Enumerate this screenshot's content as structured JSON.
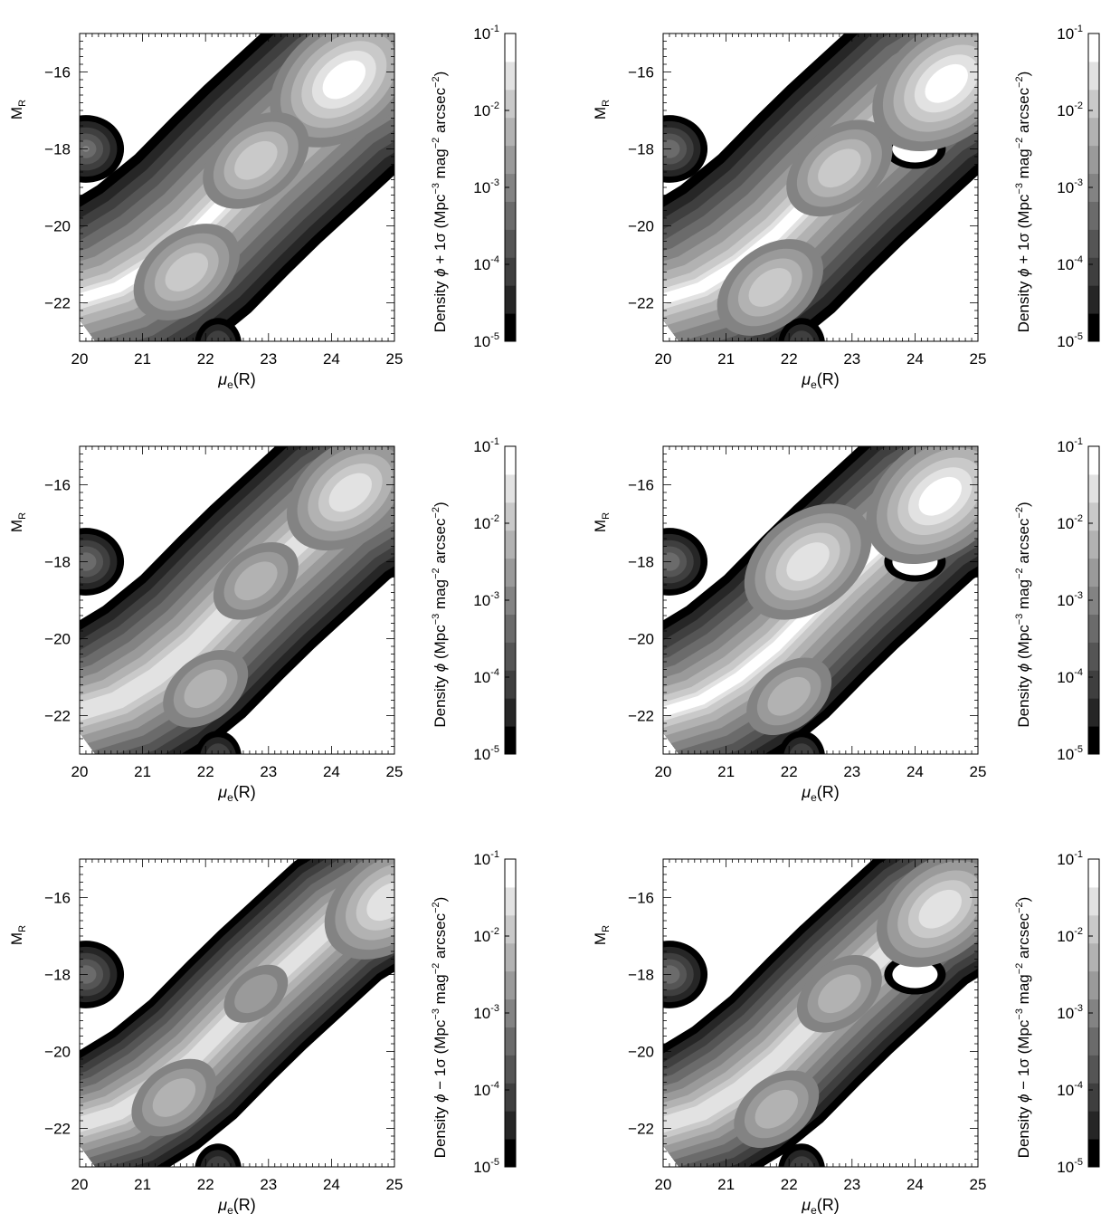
{
  "figure": {
    "colorbar_ticks": [
      {
        "base": "10",
        "exp": "-1",
        "value": 0.1
      },
      {
        "base": "10",
        "exp": "-2",
        "value": 0.01
      },
      {
        "base": "10",
        "exp": "-3",
        "value": 0.001
      },
      {
        "base": "10",
        "exp": "-4",
        "value": 0.0001
      },
      {
        "base": "10",
        "exp": "-5",
        "value": 1e-05
      }
    ],
    "colorbar_levels_gray": [
      "#000000",
      "#262626",
      "#3f3f3f",
      "#555555",
      "#6b6b6b",
      "#838383",
      "#9a9a9a",
      "#b2b2b2",
      "#c9c9c9",
      "#e2e2e2",
      "#ffffff"
    ],
    "y_axis_label": {
      "main": "M",
      "sub": "R"
    },
    "x_axis_label": {
      "main": "μ",
      "sub": "e",
      "tail": "(R)"
    }
  },
  "chart_data": [
    {
      "type": "heatmap",
      "panel": "top-left",
      "stat": "+",
      "colorbar_label": {
        "pre": "Density ",
        "phi": "ϕ",
        "mod": " + 1σ",
        "u1": " (Mpc",
        "e1": "−3",
        "u2": " mag",
        "e2": "−2",
        "u3": " arcsec",
        "e3": "−2",
        "u4": ")"
      },
      "x_ticks": [
        "20",
        "21",
        "22",
        "23",
        "24",
        "25"
      ],
      "y_ticks": [
        "−16",
        "−18",
        "−20",
        "−22"
      ],
      "xlim": [
        20,
        25
      ],
      "ylim": [
        -23,
        -15
      ],
      "colorbar_scale": "log",
      "colorbar_range": [
        1e-05,
        0.1
      ],
      "peaks": [
        {
          "x": 24.2,
          "y": -16.2,
          "level": 10
        },
        {
          "x": 22.8,
          "y": -18.3,
          "level": 8
        },
        {
          "x": 21.7,
          "y": -21.2,
          "level": 8
        },
        {
          "x": 20.1,
          "y": -18.0,
          "level": 5
        }
      ]
    },
    {
      "type": "heatmap",
      "panel": "top-right",
      "stat": "+",
      "colorbar_label": {
        "pre": "Density ",
        "phi": "ϕ",
        "mod": " + 1σ",
        "u1": " (Mpc",
        "e1": "−3",
        "u2": " mag",
        "e2": "−2",
        "u3": " arcsec",
        "e3": "−2",
        "u4": ")"
      },
      "x_ticks": [
        "20",
        "21",
        "22",
        "23",
        "24",
        "25"
      ],
      "y_ticks": [
        "−16",
        "−18",
        "−20",
        "−22"
      ],
      "xlim": [
        20,
        25
      ],
      "ylim": [
        -23,
        -15
      ],
      "colorbar_scale": "log",
      "colorbar_range": [
        1e-05,
        0.1
      ],
      "peaks": [
        {
          "x": 24.5,
          "y": -16.3,
          "level": 10
        },
        {
          "x": 22.8,
          "y": -18.5,
          "level": 8
        },
        {
          "x": 21.7,
          "y": -21.6,
          "level": 8
        },
        {
          "x": 20.1,
          "y": -18.0,
          "level": 4
        }
      ]
    },
    {
      "type": "heatmap",
      "panel": "middle-left",
      "stat": "",
      "colorbar_label": {
        "pre": "Density ",
        "phi": "ϕ",
        "mod": "",
        "u1": " (Mpc",
        "e1": "−3",
        "u2": " mag",
        "e2": "−2",
        "u3": " arcsec",
        "e3": "−2",
        "u4": ")"
      },
      "x_ticks": [
        "20",
        "21",
        "22",
        "23",
        "24",
        "25"
      ],
      "y_ticks": [
        "−16",
        "−18",
        "−20",
        "−22"
      ],
      "xlim": [
        20,
        25
      ],
      "ylim": [
        -23,
        -15
      ],
      "colorbar_scale": "log",
      "colorbar_range": [
        1e-05,
        0.1
      ],
      "peaks": [
        {
          "x": 24.3,
          "y": -16.2,
          "level": 9
        },
        {
          "x": 22.8,
          "y": -18.5,
          "level": 7
        },
        {
          "x": 22.0,
          "y": -21.3,
          "level": 7
        },
        {
          "x": 20.1,
          "y": -18.0,
          "level": 4
        }
      ]
    },
    {
      "type": "heatmap",
      "panel": "middle-right",
      "stat": "",
      "colorbar_label": {
        "pre": "Density ",
        "phi": "ϕ",
        "mod": "",
        "u1": " (Mpc",
        "e1": "−3",
        "u2": " mag",
        "e2": "−2",
        "u3": " arcsec",
        "e3": "−2",
        "u4": ")"
      },
      "x_ticks": [
        "20",
        "21",
        "22",
        "23",
        "24",
        "25"
      ],
      "y_ticks": [
        "−16",
        "−18",
        "−20",
        "−22"
      ],
      "xlim": [
        20,
        25
      ],
      "ylim": [
        -23,
        -15
      ],
      "colorbar_scale": "log",
      "colorbar_range": [
        1e-05,
        0.1
      ],
      "peaks": [
        {
          "x": 24.4,
          "y": -16.3,
          "level": 10
        },
        {
          "x": 22.3,
          "y": -18.0,
          "level": 9
        },
        {
          "x": 22.0,
          "y": -21.5,
          "level": 7
        },
        {
          "x": 20.1,
          "y": -18.0,
          "level": 4
        }
      ]
    },
    {
      "type": "heatmap",
      "panel": "bottom-left",
      "stat": "−",
      "colorbar_label": {
        "pre": "Density ",
        "phi": "ϕ",
        "mod": " − 1σ",
        "u1": " (Mpc",
        "e1": "−3",
        "u2": " mag",
        "e2": "−2",
        "u3": " arcsec",
        "e3": "−2",
        "u4": ")"
      },
      "x_ticks": [
        "20",
        "21",
        "22",
        "23",
        "24",
        "25"
      ],
      "y_ticks": [
        "−16",
        "−18",
        "−20",
        "−22"
      ],
      "xlim": [
        20,
        25
      ],
      "ylim": [
        -23,
        -15
      ],
      "colorbar_scale": "log",
      "colorbar_range": [
        1e-05,
        0.1
      ],
      "peaks": [
        {
          "x": 24.9,
          "y": -16.1,
          "level": 9
        },
        {
          "x": 22.8,
          "y": -18.5,
          "level": 6
        },
        {
          "x": 21.5,
          "y": -21.2,
          "level": 7
        },
        {
          "x": 20.1,
          "y": -18.0,
          "level": 4
        }
      ]
    },
    {
      "type": "heatmap",
      "panel": "bottom-right",
      "stat": "−",
      "colorbar_label": {
        "pre": "Density ",
        "phi": "ϕ",
        "mod": " − 1σ",
        "u1": " (Mpc",
        "e1": "−3",
        "u2": " mag",
        "e2": "−2",
        "u3": " arcsec",
        "e3": "−2",
        "u4": ")"
      },
      "x_ticks": [
        "20",
        "21",
        "22",
        "23",
        "24",
        "25"
      ],
      "y_ticks": [
        "−16",
        "−18",
        "−20",
        "−22"
      ],
      "xlim": [
        20,
        25
      ],
      "ylim": [
        -23,
        -15
      ],
      "colorbar_scale": "log",
      "colorbar_range": [
        1e-05,
        0.1
      ],
      "peaks": [
        {
          "x": 24.4,
          "y": -16.3,
          "level": 9
        },
        {
          "x": 22.8,
          "y": -18.5,
          "level": 7
        },
        {
          "x": 21.8,
          "y": -21.5,
          "level": 7
        },
        {
          "x": 20.1,
          "y": -18.0,
          "level": 4
        }
      ]
    }
  ]
}
